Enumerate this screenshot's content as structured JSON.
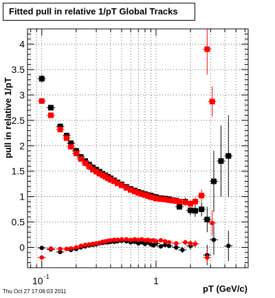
{
  "chart_data": {
    "type": "scatter",
    "title": "Fitted pull in relative 1/pT  Global Tracks",
    "xlabel": "pT (GeV/c)",
    "ylabel": "pull in relative 1/pT",
    "x_scale": "log",
    "xlim": [
      0.075,
      6.4
    ],
    "ylim": [
      -0.4,
      4.3
    ],
    "x_tick_labels": [
      {
        "value": 0.1,
        "base": "10",
        "exp": "-1"
      },
      {
        "value": 1,
        "base": "1",
        "exp": ""
      }
    ],
    "y_ticks": [
      0,
      0.5,
      1,
      1.5,
      2,
      2.5,
      3,
      3.5,
      4
    ],
    "y_tick_labels": [
      "0",
      "0.5",
      "1",
      "1.5",
      "2",
      "2.5",
      "3",
      "3.5",
      "4"
    ],
    "grid": true,
    "date": "Thu Oct 27 17:06:03 2011",
    "series": [
      {
        "color": "#000000",
        "points": [
          [
            0.1,
            3.32,
            0.08
          ],
          [
            0.12,
            2.75,
            0.05
          ],
          [
            0.145,
            2.38,
            0.04
          ],
          [
            0.165,
            2.2,
            0.03
          ],
          [
            0.18,
            2.05,
            0.03
          ],
          [
            0.2,
            1.9,
            0.03
          ],
          [
            0.22,
            1.78,
            0.02
          ],
          [
            0.24,
            1.7,
            0.02
          ],
          [
            0.26,
            1.63,
            0.02
          ],
          [
            0.28,
            1.57,
            0.02
          ],
          [
            0.3,
            1.53,
            0.02
          ],
          [
            0.32,
            1.49,
            0.02
          ],
          [
            0.34,
            1.45,
            0.02
          ],
          [
            0.36,
            1.42,
            0.02
          ],
          [
            0.38,
            1.39,
            0.02
          ],
          [
            0.4,
            1.36,
            0.02
          ],
          [
            0.43,
            1.32,
            0.02
          ],
          [
            0.46,
            1.28,
            0.02
          ],
          [
            0.5,
            1.24,
            0.02
          ],
          [
            0.55,
            1.19,
            0.02
          ],
          [
            0.6,
            1.15,
            0.02
          ],
          [
            0.65,
            1.12,
            0.02
          ],
          [
            0.7,
            1.09,
            0.02
          ],
          [
            0.75,
            1.07,
            0.02
          ],
          [
            0.8,
            1.05,
            0.02
          ],
          [
            0.85,
            1.03,
            0.02
          ],
          [
            0.9,
            1.02,
            0.03
          ],
          [
            0.95,
            1.0,
            0.03
          ],
          [
            1.0,
            0.99,
            0.03
          ],
          [
            1.1,
            0.97,
            0.03
          ],
          [
            1.2,
            0.96,
            0.03
          ],
          [
            1.3,
            0.95,
            0.04
          ],
          [
            1.4,
            0.93,
            0.04
          ],
          [
            1.5,
            0.92,
            0.05
          ],
          [
            1.6,
            0.8,
            0.06
          ],
          [
            1.8,
            0.9,
            0.08
          ],
          [
            2.0,
            0.73,
            0.1
          ],
          [
            2.2,
            0.72,
            0.12
          ],
          [
            2.5,
            0.75,
            0.14
          ],
          [
            2.8,
            0.55,
            0.25
          ],
          [
            3.2,
            1.3,
            0.6
          ],
          [
            3.7,
            1.7,
            0.7
          ],
          [
            4.3,
            1.8,
            0.8
          ]
        ]
      },
      {
        "color": "#ff0000",
        "points": [
          [
            0.1,
            2.88,
            0.05
          ],
          [
            0.12,
            2.6,
            0.04
          ],
          [
            0.145,
            2.32,
            0.03
          ],
          [
            0.165,
            2.15,
            0.03
          ],
          [
            0.18,
            1.98,
            0.03
          ],
          [
            0.2,
            1.85,
            0.02
          ],
          [
            0.22,
            1.74,
            0.02
          ],
          [
            0.24,
            1.66,
            0.02
          ],
          [
            0.26,
            1.59,
            0.02
          ],
          [
            0.28,
            1.53,
            0.02
          ],
          [
            0.3,
            1.49,
            0.02
          ],
          [
            0.32,
            1.45,
            0.02
          ],
          [
            0.34,
            1.42,
            0.02
          ],
          [
            0.36,
            1.39,
            0.02
          ],
          [
            0.38,
            1.36,
            0.02
          ],
          [
            0.4,
            1.33,
            0.02
          ],
          [
            0.43,
            1.3,
            0.02
          ],
          [
            0.46,
            1.26,
            0.02
          ],
          [
            0.5,
            1.22,
            0.02
          ],
          [
            0.55,
            1.17,
            0.02
          ],
          [
            0.6,
            1.13,
            0.02
          ],
          [
            0.65,
            1.1,
            0.02
          ],
          [
            0.7,
            1.07,
            0.02
          ],
          [
            0.75,
            1.05,
            0.02
          ],
          [
            0.8,
            1.03,
            0.02
          ],
          [
            0.85,
            1.01,
            0.02
          ],
          [
            0.9,
            0.99,
            0.02
          ],
          [
            0.95,
            0.98,
            0.03
          ],
          [
            1.0,
            0.96,
            0.03
          ],
          [
            1.1,
            0.95,
            0.03
          ],
          [
            1.2,
            0.94,
            0.03
          ],
          [
            1.3,
            0.93,
            0.03
          ],
          [
            1.4,
            0.92,
            0.04
          ],
          [
            1.5,
            0.91,
            0.04
          ],
          [
            1.6,
            0.9,
            0.05
          ],
          [
            1.8,
            0.89,
            0.06
          ],
          [
            2.0,
            0.86,
            0.07
          ],
          [
            2.2,
            0.9,
            0.08
          ],
          [
            2.5,
            1.02,
            0.12
          ],
          [
            2.8,
            3.9,
            0.5
          ],
          [
            3.1,
            2.87,
            0.3
          ]
        ]
      },
      {
        "color": "#000000",
        "points": [
          [
            0.1,
            -0.01,
            0.03
          ],
          [
            0.12,
            -0.04,
            0.03
          ],
          [
            0.145,
            -0.09,
            0.03
          ],
          [
            0.165,
            -0.03,
            0.02
          ],
          [
            0.18,
            -0.05,
            0.02
          ],
          [
            0.2,
            -0.03,
            0.02
          ],
          [
            0.22,
            0.0,
            0.02
          ],
          [
            0.24,
            0.02,
            0.02
          ],
          [
            0.26,
            0.04,
            0.02
          ],
          [
            0.28,
            0.05,
            0.02
          ],
          [
            0.3,
            0.06,
            0.02
          ],
          [
            0.32,
            0.08,
            0.02
          ],
          [
            0.34,
            0.09,
            0.02
          ],
          [
            0.36,
            0.1,
            0.02
          ],
          [
            0.38,
            0.1,
            0.02
          ],
          [
            0.4,
            0.11,
            0.02
          ],
          [
            0.43,
            0.11,
            0.02
          ],
          [
            0.46,
            0.12,
            0.02
          ],
          [
            0.5,
            0.13,
            0.02
          ],
          [
            0.55,
            0.12,
            0.02
          ],
          [
            0.6,
            0.1,
            0.02
          ],
          [
            0.65,
            0.11,
            0.02
          ],
          [
            0.7,
            0.08,
            0.02
          ],
          [
            0.75,
            0.1,
            0.02
          ],
          [
            0.8,
            0.07,
            0.02
          ],
          [
            0.85,
            0.12,
            0.02
          ],
          [
            0.9,
            0.06,
            0.03
          ],
          [
            0.95,
            0.04,
            0.03
          ],
          [
            1.0,
            0.08,
            0.03
          ],
          [
            1.1,
            0.02,
            0.03
          ],
          [
            1.2,
            0.05,
            0.03
          ],
          [
            1.3,
            0.03,
            0.04
          ],
          [
            1.5,
            0.0,
            0.05
          ],
          [
            1.7,
            -0.05,
            0.06
          ],
          [
            2.0,
            0.03,
            0.08
          ],
          [
            2.8,
            -0.15,
            0.2
          ],
          [
            3.2,
            0.15,
            0.3
          ],
          [
            4.3,
            0.03,
            0.3
          ]
        ]
      },
      {
        "color": "#ff0000",
        "points": [
          [
            0.1,
            -0.2,
            0.03
          ],
          [
            0.12,
            -0.02,
            0.03
          ],
          [
            0.145,
            -0.03,
            0.02
          ],
          [
            0.165,
            -0.03,
            0.02
          ],
          [
            0.18,
            -0.02,
            0.02
          ],
          [
            0.2,
            0.0,
            0.02
          ],
          [
            0.22,
            0.03,
            0.02
          ],
          [
            0.24,
            0.05,
            0.02
          ],
          [
            0.26,
            0.06,
            0.02
          ],
          [
            0.28,
            0.07,
            0.02
          ],
          [
            0.3,
            0.08,
            0.02
          ],
          [
            0.32,
            0.09,
            0.02
          ],
          [
            0.34,
            0.11,
            0.02
          ],
          [
            0.36,
            0.12,
            0.02
          ],
          [
            0.38,
            0.13,
            0.02
          ],
          [
            0.4,
            0.14,
            0.02
          ],
          [
            0.43,
            0.15,
            0.02
          ],
          [
            0.46,
            0.15,
            0.02
          ],
          [
            0.5,
            0.16,
            0.02
          ],
          [
            0.55,
            0.16,
            0.02
          ],
          [
            0.6,
            0.15,
            0.02
          ],
          [
            0.65,
            0.16,
            0.02
          ],
          [
            0.7,
            0.15,
            0.02
          ],
          [
            0.75,
            0.16,
            0.02
          ],
          [
            0.8,
            0.14,
            0.02
          ],
          [
            0.85,
            0.15,
            0.02
          ],
          [
            0.9,
            0.13,
            0.02
          ],
          [
            0.95,
            0.14,
            0.03
          ],
          [
            1.0,
            0.12,
            0.03
          ],
          [
            1.1,
            0.14,
            0.03
          ],
          [
            1.2,
            0.12,
            0.03
          ],
          [
            1.3,
            0.1,
            0.03
          ],
          [
            1.5,
            0.08,
            0.04
          ],
          [
            1.8,
            0.1,
            0.05
          ],
          [
            2.0,
            0.08,
            0.06
          ],
          [
            2.2,
            0.07,
            0.07
          ],
          [
            2.8,
            -0.2,
            0.12
          ],
          [
            3.1,
            0.48,
            0.25
          ]
        ]
      }
    ]
  }
}
